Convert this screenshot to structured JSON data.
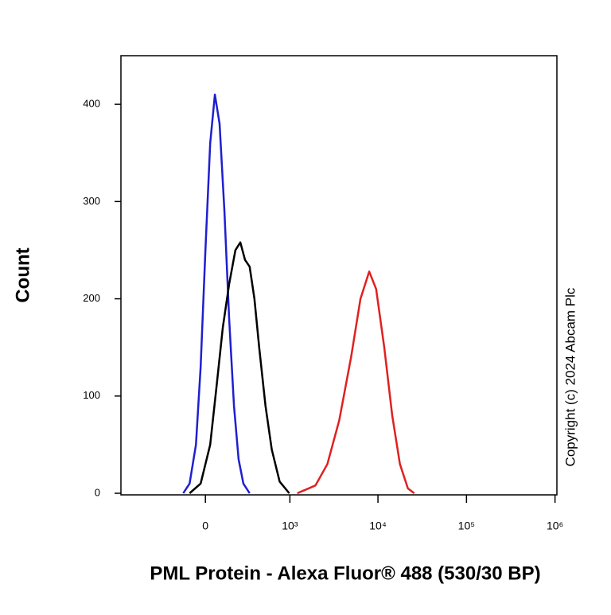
{
  "chart_data": {
    "type": "line",
    "x_label": "PML Protein - Alexa Fluor® 488 (530/30 BP)",
    "y_label": "Count",
    "annotation": "Copyright (c) 2024 Abcam Plc",
    "xscale": "asinh",
    "xlim": [
      -1000,
      1050000
    ],
    "xticks": [
      0,
      {
        "value": 1000,
        "label": "10³"
      },
      {
        "value": 10000,
        "label": "10⁴"
      },
      {
        "value": 100000,
        "label": "10⁵"
      },
      {
        "value": 1000000,
        "label": "10⁶"
      }
    ],
    "ylim": [
      0,
      450
    ],
    "yticks": [
      0,
      100,
      200,
      300,
      400
    ],
    "series": [
      {
        "color": "#1f1fd0",
        "x": [
          -137,
          -95,
          -56,
          -28,
          0,
          28,
          56,
          85,
          116,
          148,
          183,
          219,
          260,
          320
        ],
        "values": [
          0,
          10,
          50,
          130,
          250,
          360,
          410,
          380,
          290,
          180,
          90,
          35,
          10,
          0
        ]
      },
      {
        "color": "#000000",
        "x": [
          -95,
          -28,
          28,
          66,
          105,
          148,
          194,
          234,
          275,
          320,
          371,
          428,
          513,
          612,
          760,
          983
        ],
        "values": [
          0,
          10,
          50,
          110,
          170,
          215,
          250,
          258,
          240,
          233,
          200,
          150,
          90,
          45,
          12,
          0
        ]
      },
      {
        "color": "#e02020",
        "x": [
          1215,
          1960,
          2680,
          3650,
          4970,
          6340,
          7970,
          9540,
          11770,
          14500,
          17700,
          21800,
          25700
        ],
        "values": [
          0,
          8,
          30,
          75,
          140,
          200,
          228,
          210,
          150,
          80,
          30,
          5,
          0
        ]
      }
    ]
  }
}
